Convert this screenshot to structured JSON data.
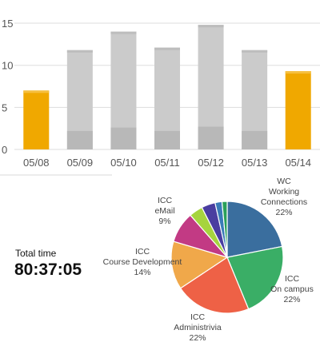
{
  "chart_data": [
    {
      "type": "bar",
      "categories": [
        "05/08",
        "05/09",
        "05/10",
        "05/11",
        "05/12",
        "05/13",
        "05/14"
      ],
      "series": [
        {
          "values": [
            7,
            11.8,
            14,
            12.1,
            14.8,
            11.8,
            9.3
          ]
        },
        {
          "values": [
            0,
            2.2,
            2.6,
            2.2,
            2.7,
            2.2,
            0
          ]
        }
      ],
      "highlighted": [
        "05/08",
        "05/14"
      ],
      "ylim": [
        0,
        17
      ],
      "yticks": [
        0,
        5,
        10,
        15
      ],
      "grid": true,
      "colors": {
        "highlight": "#f0a800",
        "bar": "#cbcbcb",
        "bar_lower": "#b8b8b8",
        "grid": "#dddddd"
      }
    },
    {
      "type": "pie",
      "slices": [
        {
          "label": [
            "WC",
            "Working",
            "Connections",
            "22%"
          ],
          "value": 22,
          "color": "#3a6e9e"
        },
        {
          "label": [
            "ICC",
            "On campus",
            "22%"
          ],
          "value": 22,
          "color": "#3aae66"
        },
        {
          "label": [
            "ICC",
            "Administrivia",
            "22%"
          ],
          "value": 22,
          "color": "#ee6146"
        },
        {
          "label": [
            "ICC",
            "Course Development",
            "14%"
          ],
          "value": 14,
          "color": "#f0a84a"
        },
        {
          "label": [
            "ICC",
            "eMail",
            "9%"
          ],
          "value": 9,
          "color": "#c23a84"
        },
        {
          "label": [],
          "value": 4,
          "color": "#a6d43e"
        },
        {
          "label": [],
          "value": 4,
          "color": "#4a3ea0"
        },
        {
          "label": [],
          "value": 2,
          "color": "#3a7bb8"
        },
        {
          "label": [],
          "value": 1.5,
          "color": "#2aa05a"
        }
      ]
    }
  ],
  "summary": {
    "total_label": "Total time",
    "total_value": "80:37:05"
  }
}
